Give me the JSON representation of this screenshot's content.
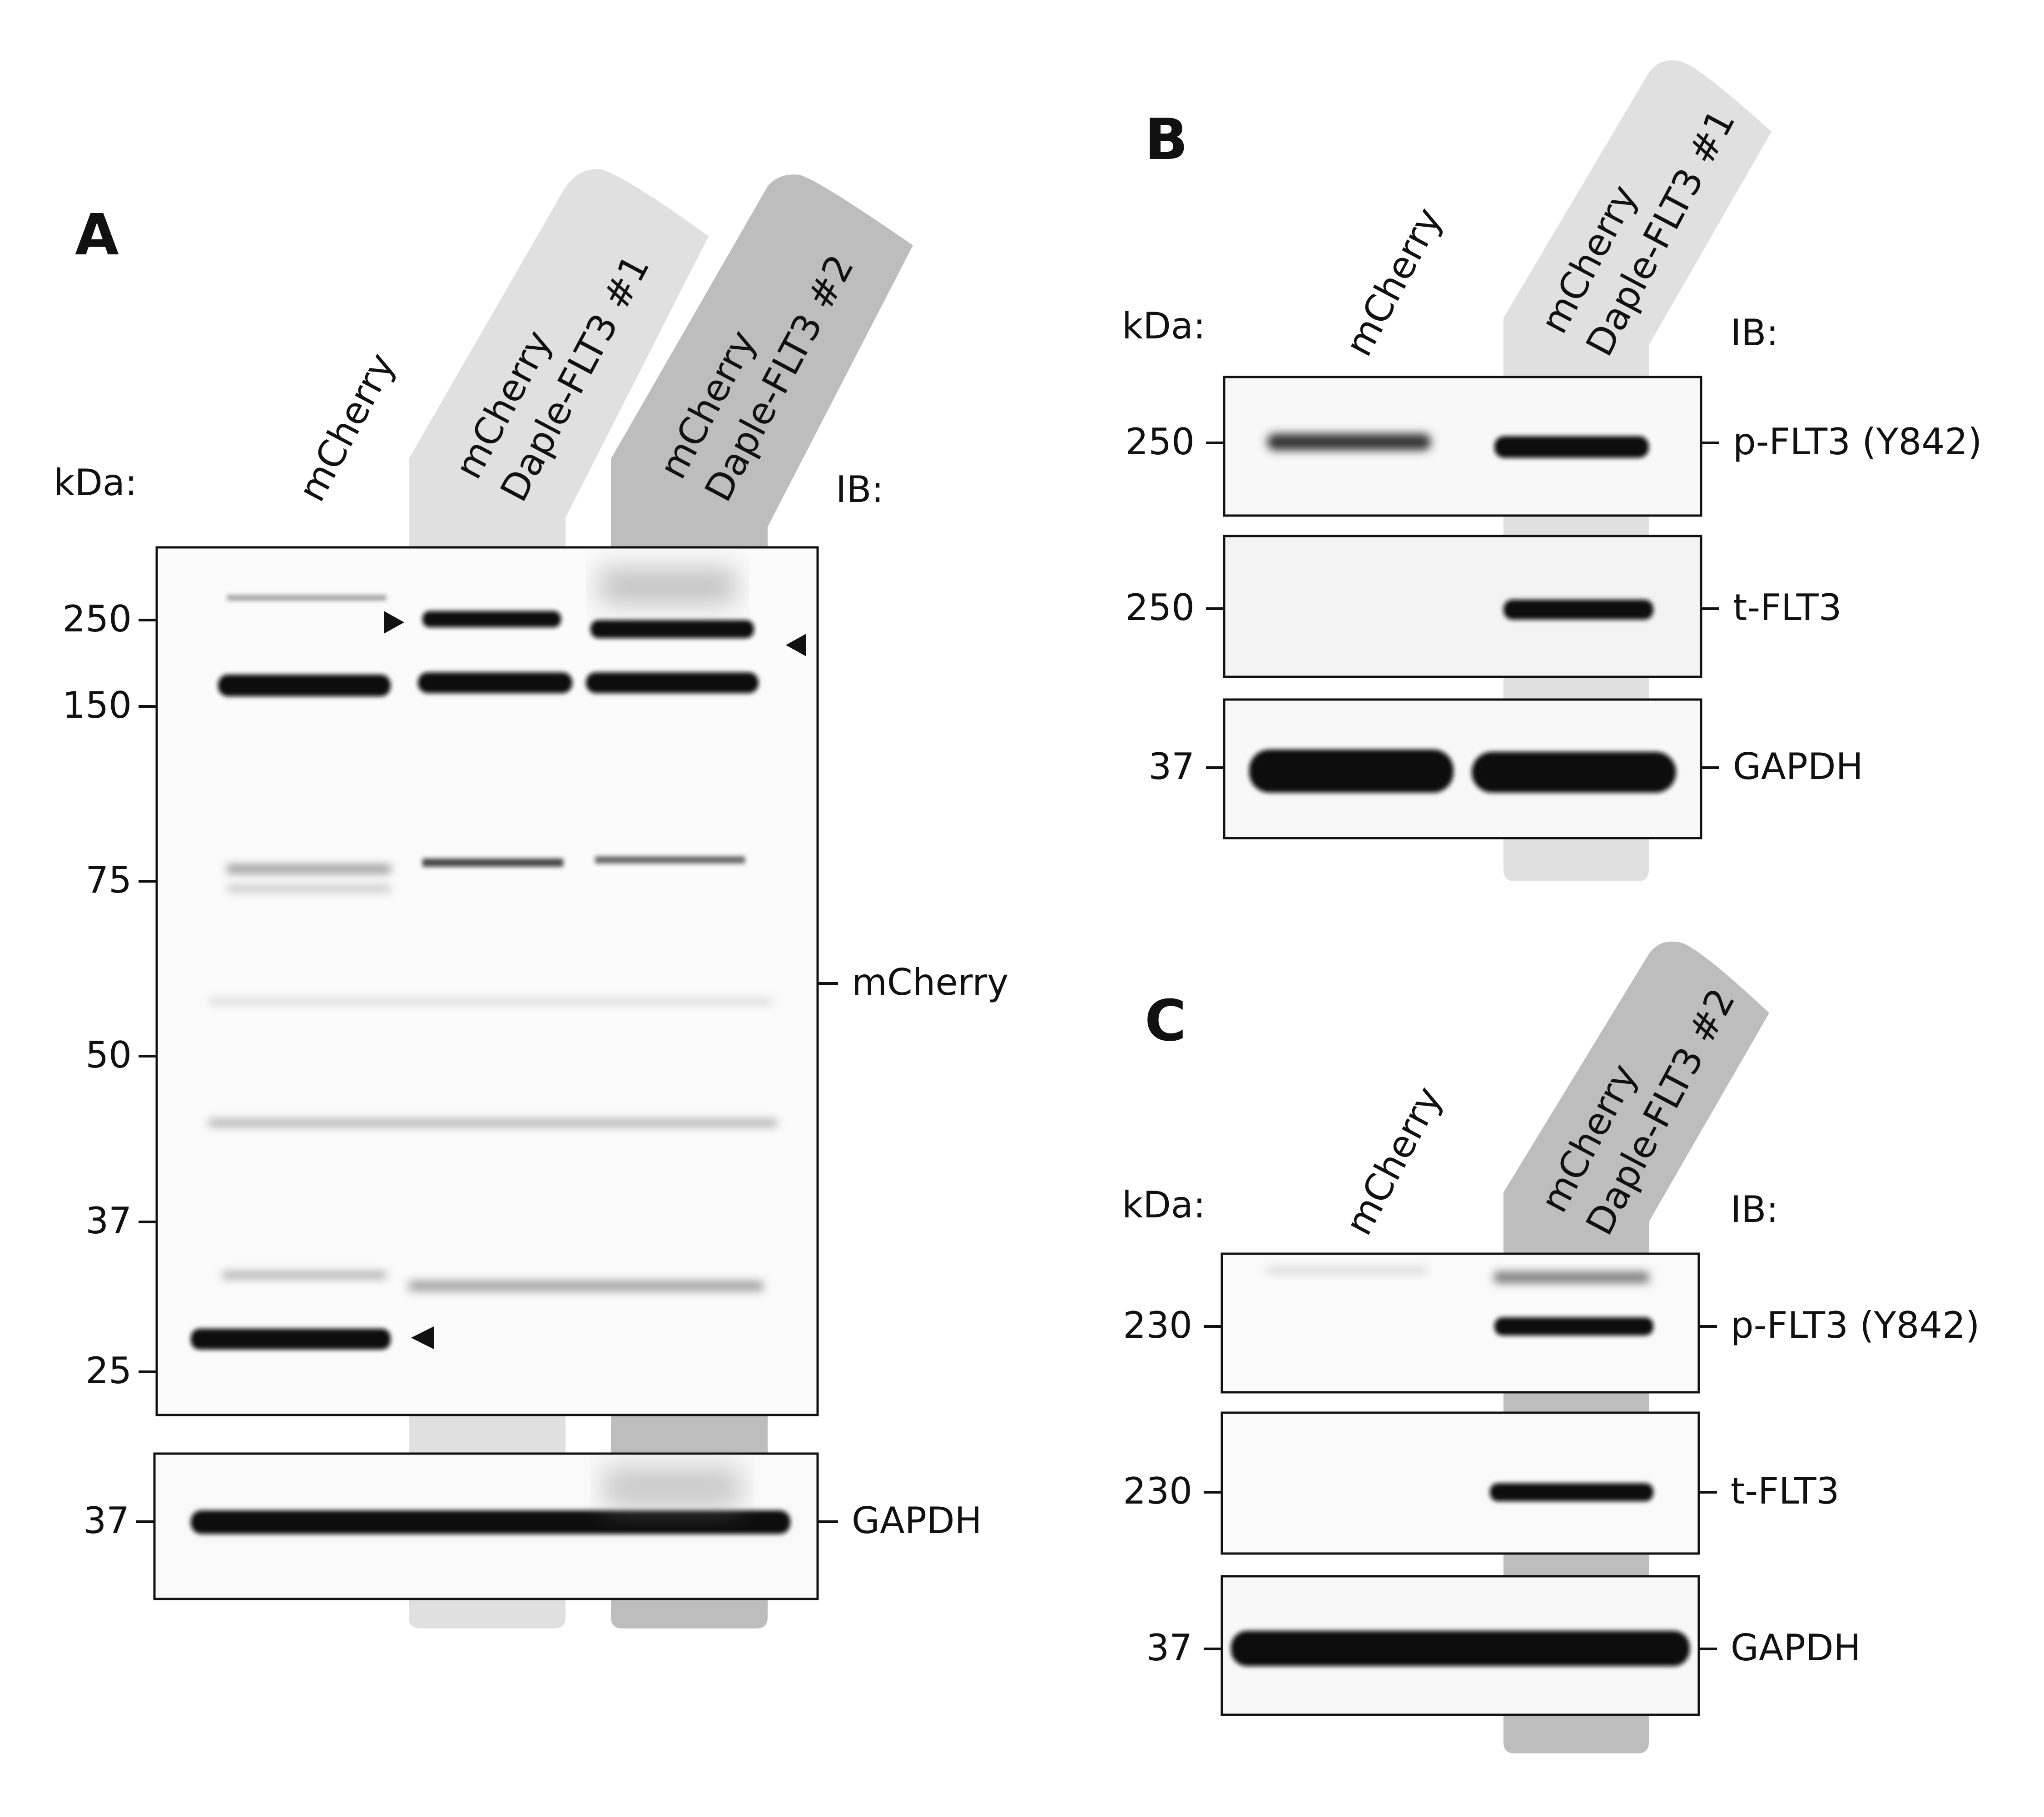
{
  "panels": {
    "A": {
      "letter": "A",
      "lanes": [
        "mCherry",
        "mCherry",
        "Daple-FLT3 #1",
        "mCherry",
        "Daple-FLT3 #2"
      ],
      "kda_label": "kDa:",
      "ib_label": "IB:",
      "markers": [
        "250",
        "150",
        "75",
        "50",
        "37",
        "25"
      ],
      "blot_label": "mCherry",
      "gapdh_marker": "37",
      "gapdh_label": "GAPDH"
    },
    "B": {
      "letter": "B",
      "lanes": [
        "mCherry",
        "mCherry",
        "Daple-FLT3 #1"
      ],
      "kda_label": "kDa:",
      "ib_label": "IB:",
      "rows": [
        {
          "marker": "250",
          "label": "p-FLT3 (Y842)"
        },
        {
          "marker": "250",
          "label": "t-FLT3"
        },
        {
          "marker": "37",
          "label": "GAPDH"
        }
      ]
    },
    "C": {
      "letter": "C",
      "lanes": [
        "mCherry",
        "mCherry",
        "Daple-FLT3 #2"
      ],
      "kda_label": "kDa:",
      "ib_label": "IB:",
      "rows": [
        {
          "marker": "230",
          "label": "p-FLT3 (Y842)"
        },
        {
          "marker": "230",
          "label": "t-FLT3"
        },
        {
          "marker": "37",
          "label": "GAPDH"
        }
      ]
    }
  },
  "colors": {
    "highlight_1": "#e0e0e0",
    "highlight_2": "#bdbdbd",
    "band": "#0a0a0a",
    "frame": "#111111"
  }
}
